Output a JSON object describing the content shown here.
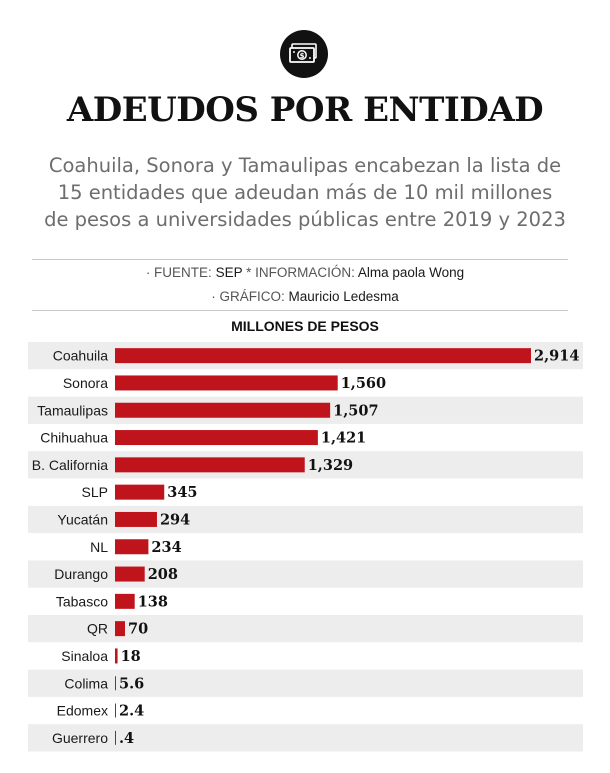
{
  "header": {
    "icon": "money-bill-icon",
    "title": "ADEUDOS POR ENTIDAD",
    "subtitle_lines": [
      "Coahuila, Sonora y Tamaulipas encabezan la lista de",
      "15 entidades que adeudan más de 10 mil millones",
      "de pesos a universidades públicas entre 2019 y 2023"
    ]
  },
  "credits": {
    "source_prefix": "· FUENTE: ",
    "source_value": "SEP",
    "info_prefix": " * INFORMACIÓN: ",
    "info_value": "Alma paola Wong",
    "graphic_prefix": "· GRÁFICO: ",
    "graphic_value": "Mauricio Ledesma"
  },
  "colors": {
    "bar": "#c0141c",
    "stripe": "#ededed",
    "tick": "#c0141c"
  },
  "chart_data": {
    "type": "bar",
    "orientation": "horizontal",
    "title": "MILLONES DE PESOS",
    "xlabel": "",
    "ylabel": "",
    "xlim": [
      0,
      2914
    ],
    "categories": [
      "Coahuila",
      "Sonora",
      "Tamaulipas",
      "Chihuahua",
      "B. California",
      "SLP",
      "Yucatán",
      "NL",
      "Durango",
      "Tabasco",
      "QR",
      "Sinaloa",
      "Colima",
      "Edomex",
      "Guerrero"
    ],
    "values": [
      2914,
      1560,
      1507,
      1421,
      1329,
      345,
      294,
      234,
      208,
      138,
      70,
      18,
      5.6,
      2.4,
      0.4
    ],
    "value_labels": [
      "2,914",
      "1,560",
      "1,507",
      "1,421",
      "1,329",
      "345",
      "294",
      "234",
      "208",
      "138",
      "70",
      "18",
      "5.6",
      "2.4",
      ".4"
    ]
  }
}
